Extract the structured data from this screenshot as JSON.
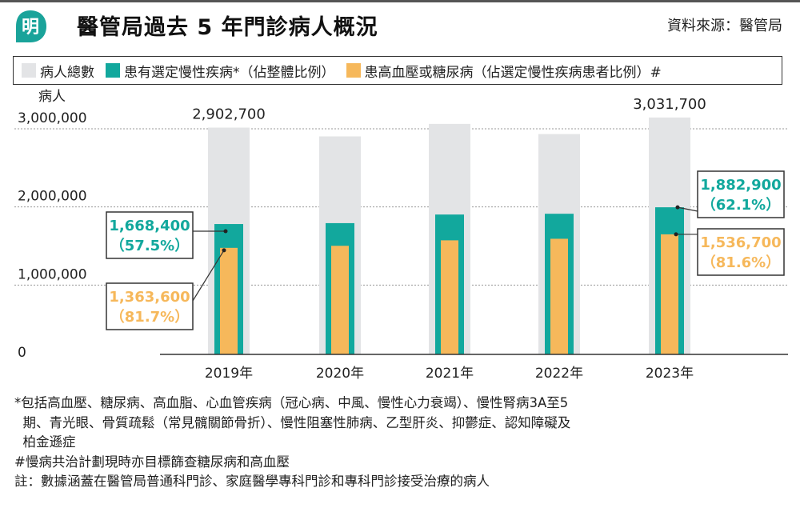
{
  "header": {
    "logo_char": "明",
    "title": "醫管局過去 5 年門診病人概況",
    "source": "資料來源：醫管局"
  },
  "legend": [
    {
      "label": "病人總數",
      "color": "#e3e4e6"
    },
    {
      "label": "患有選定慢性疾病*（佔整體比例）",
      "color": "#12a89d"
    },
    {
      "label": "患高血壓或糖尿病（佔選定慢性疾病患者比例）#",
      "color": "#f6b85b"
    }
  ],
  "chart_data": {
    "type": "bar",
    "ylabel": "病人",
    "ylim": [
      0,
      3000000
    ],
    "yticks": [
      0,
      1000000,
      2000000,
      3000000
    ],
    "ytick_labels": [
      "0",
      "1,000,000",
      "2,000,000",
      "3,000,000"
    ],
    "categories": [
      "2019年",
      "2020年",
      "2021年",
      "2022年",
      "2023年"
    ],
    "series": [
      {
        "name": "病人總數",
        "color": "#e3e4e6",
        "values": [
          2902700,
          2790000,
          2950000,
          2820000,
          3031700
        ]
      },
      {
        "name": "患有選定慢性疾病*（佔整體比例）",
        "color": "#12a89d",
        "values": [
          1668400,
          1680000,
          1790000,
          1800000,
          1882900
        ]
      },
      {
        "name": "患高血壓或糖尿病（佔選定慢性疾病患者比例）#",
        "color": "#f6b85b",
        "values": [
          1363600,
          1390000,
          1460000,
          1480000,
          1536700
        ]
      }
    ],
    "total_labels": [
      {
        "index": 0,
        "text": "2,902,700"
      },
      {
        "index": 4,
        "text": "3,031,700"
      }
    ],
    "callouts": [
      {
        "index": 0,
        "series": 1,
        "value": "1,668,400",
        "pct": "（57.5%）",
        "color": "#12a89d",
        "side": "left"
      },
      {
        "index": 0,
        "series": 2,
        "value": "1,363,600",
        "pct": "（81.7%）",
        "color": "#f6b85b",
        "side": "left"
      },
      {
        "index": 4,
        "series": 1,
        "value": "1,882,900",
        "pct": "（62.1%）",
        "color": "#12a89d",
        "side": "right"
      },
      {
        "index": 4,
        "series": 2,
        "value": "1,536,700",
        "pct": "（81.6%）",
        "color": "#f6b85b",
        "side": "right"
      }
    ]
  },
  "notes": [
    "*包括高血壓、糖尿病、高血脂、心血管疾病（冠心病、中風、慢性心力衰竭）、慢性腎病3A至5",
    "  期、青光眼、骨質疏鬆（常見髖關節骨折）、慢性阻塞性肺病、乙型肝炎、抑鬱症、認知障礙及",
    "  柏金遜症",
    "#慢病共治計劃現時亦目標篩查糖尿病和高血壓",
    "註：數據涵蓋在醫管局普通科門診、家庭醫學專科門診和專科門診接受治療的病人"
  ]
}
